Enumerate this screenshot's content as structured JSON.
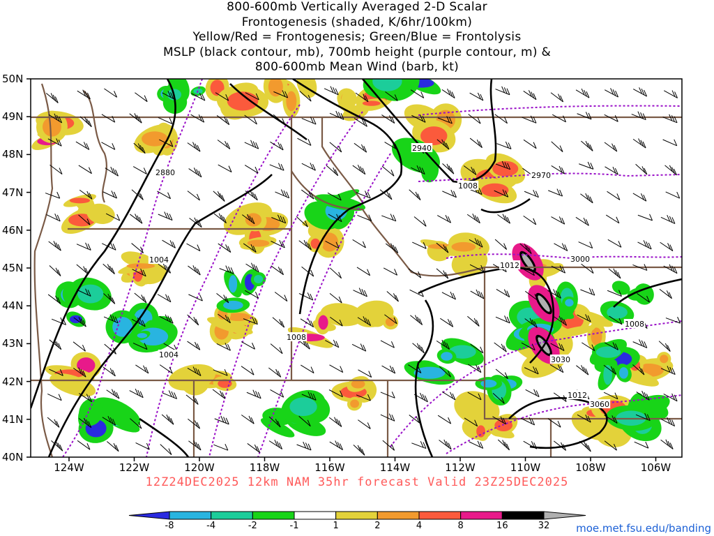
{
  "title": {
    "lines": [
      "800-600mb Vertically Averaged 2-D Scalar",
      "Frontogenesis (shaded, K/6hr/100km)",
      "Yellow/Red = Frontogenesis;  Green/Blue = Frontolysis",
      "MSLP (black contour, mb), 700mb height (purple contour, m) &",
      "800-600mb Mean Wind (barb, kt)"
    ]
  },
  "map": {
    "lat_labels": [
      "50N",
      "49N",
      "48N",
      "47N",
      "46N",
      "45N",
      "44N",
      "43N",
      "42N",
      "41N",
      "40N"
    ],
    "lon_labels": [
      "124W",
      "122W",
      "120W",
      "118W",
      "116W",
      "114W",
      "112W",
      "110W",
      "108W",
      "106W"
    ],
    "mslp_labels": [
      "1004",
      "1004",
      "1008",
      "1008",
      "1012",
      "1012",
      "1008"
    ],
    "height_labels": [
      "2880",
      "2940",
      "2970",
      "3000",
      "3030",
      "3060"
    ],
    "colors": {
      "mslp": "#000000",
      "height": "#9a10c8",
      "borders": "#7a5a46",
      "frontogenesis": [
        "#e3d23a",
        "#f29a2e",
        "#fb5a3c",
        "#e81a8a",
        "#000000",
        "#b0b0b0"
      ],
      "frontolysis": [
        "#2a2ae0",
        "#29b4e0",
        "#1ccd9a",
        "#18d418"
      ]
    }
  },
  "valid": "12Z24DEC2025 12km NAM 35hr forecast Valid 23Z25DEC2025",
  "colorbar": {
    "labels": [
      "-8",
      "-4",
      "-2",
      "-1",
      "1",
      "2",
      "4",
      "8",
      "16",
      "32"
    ],
    "colors": [
      "#2a2ae0",
      "#29b4e0",
      "#1ccd9a",
      "#18d418",
      "#ffffff",
      "#e3d23a",
      "#f29a2e",
      "#fb5a3c",
      "#e81a8a",
      "#000000",
      "#b0b0b0"
    ]
  },
  "credit": "moe.met.fsu.edu/banding"
}
